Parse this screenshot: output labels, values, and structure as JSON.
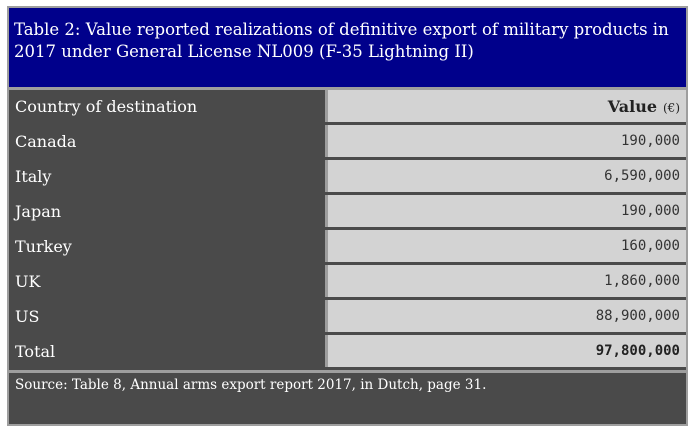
{
  "table": {
    "title": "Table 2: Value reported realizations of definitive export of military products in 2017 under General License NL009 (F-35 Lightning II)",
    "header": {
      "country": "Country of destination",
      "value": "Value",
      "unit": "(€)"
    },
    "rows": [
      {
        "country": "Canada",
        "value": "190,000"
      },
      {
        "country": "Italy",
        "value": "6,590,000"
      },
      {
        "country": "Japan",
        "value": "190,000"
      },
      {
        "country": "Turkey",
        "value": "160,000"
      },
      {
        "country": "UK",
        "value": "1,860,000"
      },
      {
        "country": "US",
        "value": "88,900,000"
      }
    ],
    "total": {
      "label": "Total",
      "value": "97,800,000"
    },
    "source": "Source: Table 8, Annual arms export report 2017, in Dutch, page 31."
  },
  "colors": {
    "title_background": "#00008b",
    "label_cells": "#4a4a4a",
    "value_cells": "#d3d3d3",
    "borders": "#9e9e9e"
  }
}
